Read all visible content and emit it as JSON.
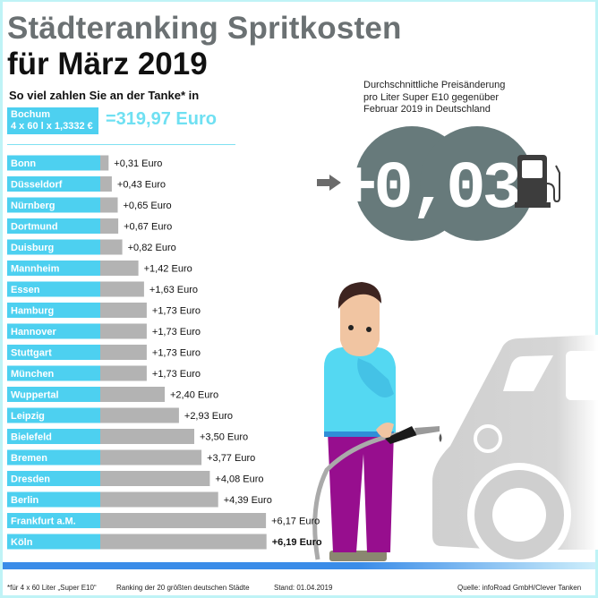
{
  "header": {
    "title_line1": "Städteranking Spritkosten",
    "title_line2": "für März 2019",
    "subtitle": "So viel zahlen Sie an der Tanke* in"
  },
  "base": {
    "city": "Bochum",
    "formula": "4 x 60 l x 1,3332 €",
    "total": "=319,97 Euro"
  },
  "price_change": {
    "note_lines": [
      "Durchschnittliche Preisänderung",
      "pro Liter Super E10 gegenüber",
      "Februar 2019 in Deutschland"
    ],
    "display": "+0,03",
    "icons": [
      "arrow-right-icon",
      "fuel-pump-icon"
    ]
  },
  "chart_data": {
    "type": "bar",
    "orientation": "horizontal",
    "unit": "Euro",
    "categories": [
      "Bonn",
      "Düsseldorf",
      "Nürnberg",
      "Dortmund",
      "Duisburg",
      "Mannheim",
      "Essen",
      "Hamburg",
      "Hannover",
      "Stuttgart",
      "München",
      "Wuppertal",
      "Leipzig",
      "Bielefeld",
      "Bremen",
      "Dresden",
      "Berlin",
      "Frankfurt a.M.",
      "Köln"
    ],
    "values": [
      0.31,
      0.43,
      0.65,
      0.67,
      0.82,
      1.42,
      1.63,
      1.73,
      1.73,
      1.73,
      1.73,
      2.4,
      2.93,
      3.5,
      3.77,
      4.08,
      4.39,
      6.17,
      6.19
    ],
    "labels": [
      "+0,31 Euro",
      "+0,43 Euro",
      "+0,65 Euro",
      "+0,67 Euro",
      "+0,82 Euro",
      "+1,42 Euro",
      "+1,63 Euro",
      "+1,73 Euro",
      "+1,73 Euro",
      "+1,73 Euro",
      "+1,73 Euro",
      "+2,40 Euro",
      "+2,93 Euro",
      "+3,50 Euro",
      "+3,77 Euro",
      "+4,08 Euro",
      "+4,39 Euro",
      "+6,17 Euro",
      "+6,19 Euro"
    ],
    "highlight_last": true
  },
  "footer": {
    "footnote": "*für 4 x 60 Liter „Super E10“",
    "ranking": "Ranking der 20 größten deutschen Städte",
    "date": "Stand: 01.04.2019",
    "source": "Quelle: infoRoad GmbH/Clever Tanken"
  },
  "colors": {
    "label_bar": "#4dd0f0",
    "value_bar": "#b3b3b3",
    "title_gray": "#6b7173",
    "display_bg": "#677a7b",
    "accent_blue": "#3a8ce8"
  }
}
